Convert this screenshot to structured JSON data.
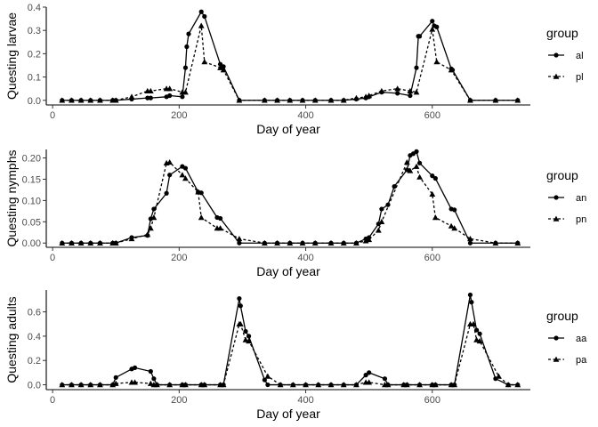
{
  "chart_data": [
    {
      "type": "line",
      "xlabel": "Day of year",
      "ylabel": "Questing larvae",
      "xlim": [
        -10,
        755
      ],
      "ylim": [
        -0.02,
        0.4
      ],
      "xticks": [
        0,
        200,
        400,
        600
      ],
      "yticks": [
        0.0,
        0.1,
        0.2,
        0.3,
        0.4
      ],
      "ytick_labels": [
        "0.0",
        "0.1",
        "0.2",
        "0.3",
        "0.4"
      ],
      "grid": false,
      "legend": {
        "title": "group",
        "placement": "right"
      },
      "series": [
        {
          "name": "al",
          "marker": "circle",
          "linestyle": "solid",
          "x": [
            15,
            30,
            45,
            60,
            75,
            95,
            100,
            125,
            150,
            155,
            180,
            185,
            205,
            210,
            212,
            215,
            235,
            240,
            265,
            270,
            295,
            335,
            355,
            375,
            395,
            415,
            440,
            460,
            480,
            495,
            500,
            520,
            545,
            565,
            575,
            578,
            580,
            600,
            603,
            607,
            630,
            632,
            660,
            700,
            735
          ],
          "y": [
            0.0,
            0.0,
            0.0,
            0.0,
            0.0,
            0.0,
            0.0,
            0.005,
            0.01,
            0.01,
            0.015,
            0.02,
            0.015,
            0.14,
            0.23,
            0.285,
            0.38,
            0.36,
            0.155,
            0.145,
            0.0,
            0.0,
            0.0,
            0.0,
            0.0,
            0.0,
            0.0,
            0.0,
            0.005,
            0.01,
            0.015,
            0.035,
            0.03,
            0.02,
            0.14,
            0.275,
            0.275,
            0.34,
            0.32,
            0.315,
            0.135,
            0.13,
            0.0,
            0.0,
            0.0
          ]
        },
        {
          "name": "pl",
          "marker": "triangle",
          "linestyle": "dashed",
          "x": [
            15,
            30,
            45,
            60,
            75,
            95,
            100,
            125,
            150,
            155,
            180,
            185,
            205,
            210,
            235,
            240,
            265,
            270,
            295,
            335,
            355,
            375,
            395,
            415,
            440,
            460,
            480,
            495,
            500,
            520,
            545,
            565,
            575,
            600,
            607,
            630,
            660,
            700,
            735
          ],
          "y": [
            0.0,
            0.0,
            0.0,
            0.0,
            0.0,
            0.0,
            0.0,
            0.015,
            0.04,
            0.04,
            0.05,
            0.05,
            0.035,
            0.035,
            0.32,
            0.165,
            0.14,
            0.13,
            0.0,
            0.0,
            0.0,
            0.0,
            0.0,
            0.0,
            0.0,
            0.0,
            0.01,
            0.015,
            0.02,
            0.04,
            0.05,
            0.04,
            0.035,
            0.305,
            0.165,
            0.13,
            0.0,
            0.0,
            0.0
          ]
        }
      ]
    },
    {
      "type": "line",
      "xlabel": "Day of year",
      "ylabel": "Questing nymphs",
      "xlim": [
        -10,
        755
      ],
      "ylim": [
        -0.01,
        0.22
      ],
      "xticks": [
        0,
        200,
        400,
        600
      ],
      "yticks": [
        0.0,
        0.05,
        0.1,
        0.15,
        0.2
      ],
      "ytick_labels": [
        "0.00",
        "0.05",
        "0.10",
        "0.15",
        "0.20"
      ],
      "grid": false,
      "legend": {
        "title": "group",
        "placement": "right"
      },
      "series": [
        {
          "name": "an",
          "marker": "circle",
          "linestyle": "solid",
          "x": [
            15,
            30,
            45,
            60,
            75,
            95,
            100,
            125,
            150,
            155,
            160,
            180,
            185,
            205,
            210,
            230,
            235,
            260,
            265,
            295,
            335,
            355,
            375,
            395,
            415,
            440,
            460,
            480,
            495,
            500,
            515,
            520,
            530,
            540,
            560,
            565,
            570,
            575,
            580,
            600,
            605,
            630,
            635,
            660,
            700,
            735
          ],
          "y": [
            0.0,
            0.0,
            0.0,
            0.0,
            0.0,
            0.0,
            0.0,
            0.013,
            0.018,
            0.057,
            0.08,
            0.117,
            0.16,
            0.18,
            0.176,
            0.12,
            0.118,
            0.06,
            0.058,
            0.0,
            0.0,
            0.0,
            0.0,
            0.0,
            0.0,
            0.0,
            0.0,
            0.0,
            0.01,
            0.013,
            0.045,
            0.08,
            0.09,
            0.133,
            0.172,
            0.206,
            0.21,
            0.215,
            0.188,
            0.158,
            0.152,
            0.08,
            0.078,
            0.0,
            0.0,
            0.0
          ]
        },
        {
          "name": "pn",
          "marker": "triangle",
          "linestyle": "dashed",
          "x": [
            15,
            30,
            45,
            60,
            75,
            95,
            100,
            125,
            150,
            155,
            160,
            180,
            185,
            205,
            210,
            230,
            235,
            260,
            265,
            295,
            335,
            355,
            375,
            395,
            415,
            440,
            460,
            480,
            495,
            500,
            515,
            520,
            560,
            565,
            575,
            580,
            600,
            605,
            630,
            635,
            660,
            700,
            735
          ],
          "y": [
            0.0,
            0.0,
            0.0,
            0.0,
            0.0,
            0.0,
            0.0,
            0.01,
            0.02,
            0.035,
            0.06,
            0.188,
            0.19,
            0.16,
            0.152,
            0.12,
            0.06,
            0.035,
            0.035,
            0.01,
            0.0,
            0.0,
            0.0,
            0.0,
            0.0,
            0.0,
            0.0,
            0.0,
            0.005,
            0.008,
            0.03,
            0.05,
            0.19,
            0.17,
            0.18,
            0.155,
            0.115,
            0.06,
            0.04,
            0.035,
            0.01,
            0.0,
            0.0
          ]
        }
      ]
    },
    {
      "type": "line",
      "xlabel": "Day of year",
      "ylabel": "Questing adults",
      "xlim": [
        -10,
        755
      ],
      "ylim": [
        -0.04,
        0.78
      ],
      "xticks": [
        0,
        200,
        400,
        600
      ],
      "yticks": [
        0.0,
        0.2,
        0.4,
        0.6
      ],
      "ytick_labels": [
        "0.0",
        "0.2",
        "0.4",
        "0.6"
      ],
      "grid": false,
      "legend": {
        "title": "group",
        "placement": "right"
      },
      "series": [
        {
          "name": "aa",
          "marker": "circle",
          "linestyle": "solid",
          "x": [
            15,
            30,
            45,
            60,
            75,
            95,
            100,
            125,
            130,
            155,
            160,
            165,
            185,
            205,
            210,
            235,
            240,
            265,
            270,
            295,
            297,
            305,
            310,
            335,
            340,
            360,
            380,
            400,
            420,
            440,
            460,
            480,
            495,
            500,
            525,
            530,
            555,
            560,
            580,
            600,
            605,
            630,
            635,
            660,
            662,
            670,
            675,
            700,
            720,
            735
          ],
          "y": [
            0.0,
            0.0,
            0.0,
            0.0,
            0.0,
            0.0,
            0.06,
            0.13,
            0.14,
            0.11,
            0.05,
            0.0,
            0.0,
            0.0,
            0.0,
            0.0,
            0.0,
            0.0,
            0.0,
            0.71,
            0.65,
            0.44,
            0.4,
            0.04,
            0.0,
            0.0,
            0.0,
            0.0,
            0.0,
            0.0,
            0.0,
            0.0,
            0.08,
            0.1,
            0.05,
            0.0,
            0.0,
            0.0,
            0.0,
            0.0,
            0.0,
            0.0,
            0.0,
            0.74,
            0.68,
            0.45,
            0.42,
            0.05,
            0.0,
            0.0
          ]
        },
        {
          "name": "pa",
          "marker": "triangle",
          "linestyle": "dashed",
          "x": [
            15,
            30,
            45,
            60,
            75,
            95,
            100,
            125,
            130,
            155,
            160,
            165,
            185,
            205,
            210,
            235,
            240,
            265,
            270,
            295,
            297,
            305,
            310,
            340,
            360,
            380,
            400,
            420,
            440,
            460,
            480,
            495,
            500,
            525,
            530,
            555,
            560,
            580,
            600,
            605,
            630,
            635,
            660,
            665,
            670,
            675,
            705,
            720,
            735
          ],
          "y": [
            0.0,
            0.0,
            0.0,
            0.0,
            0.0,
            0.0,
            0.01,
            0.02,
            0.02,
            0.01,
            0.0,
            0.0,
            0.0,
            0.0,
            0.0,
            0.0,
            0.0,
            0.0,
            0.0,
            0.5,
            0.5,
            0.37,
            0.36,
            0.07,
            0.0,
            0.0,
            0.0,
            0.0,
            0.0,
            0.0,
            0.0,
            0.02,
            0.02,
            0.0,
            0.0,
            0.0,
            0.0,
            0.0,
            0.0,
            0.0,
            0.0,
            0.0,
            0.5,
            0.5,
            0.37,
            0.36,
            0.07,
            0.0,
            0.0
          ]
        }
      ]
    }
  ]
}
